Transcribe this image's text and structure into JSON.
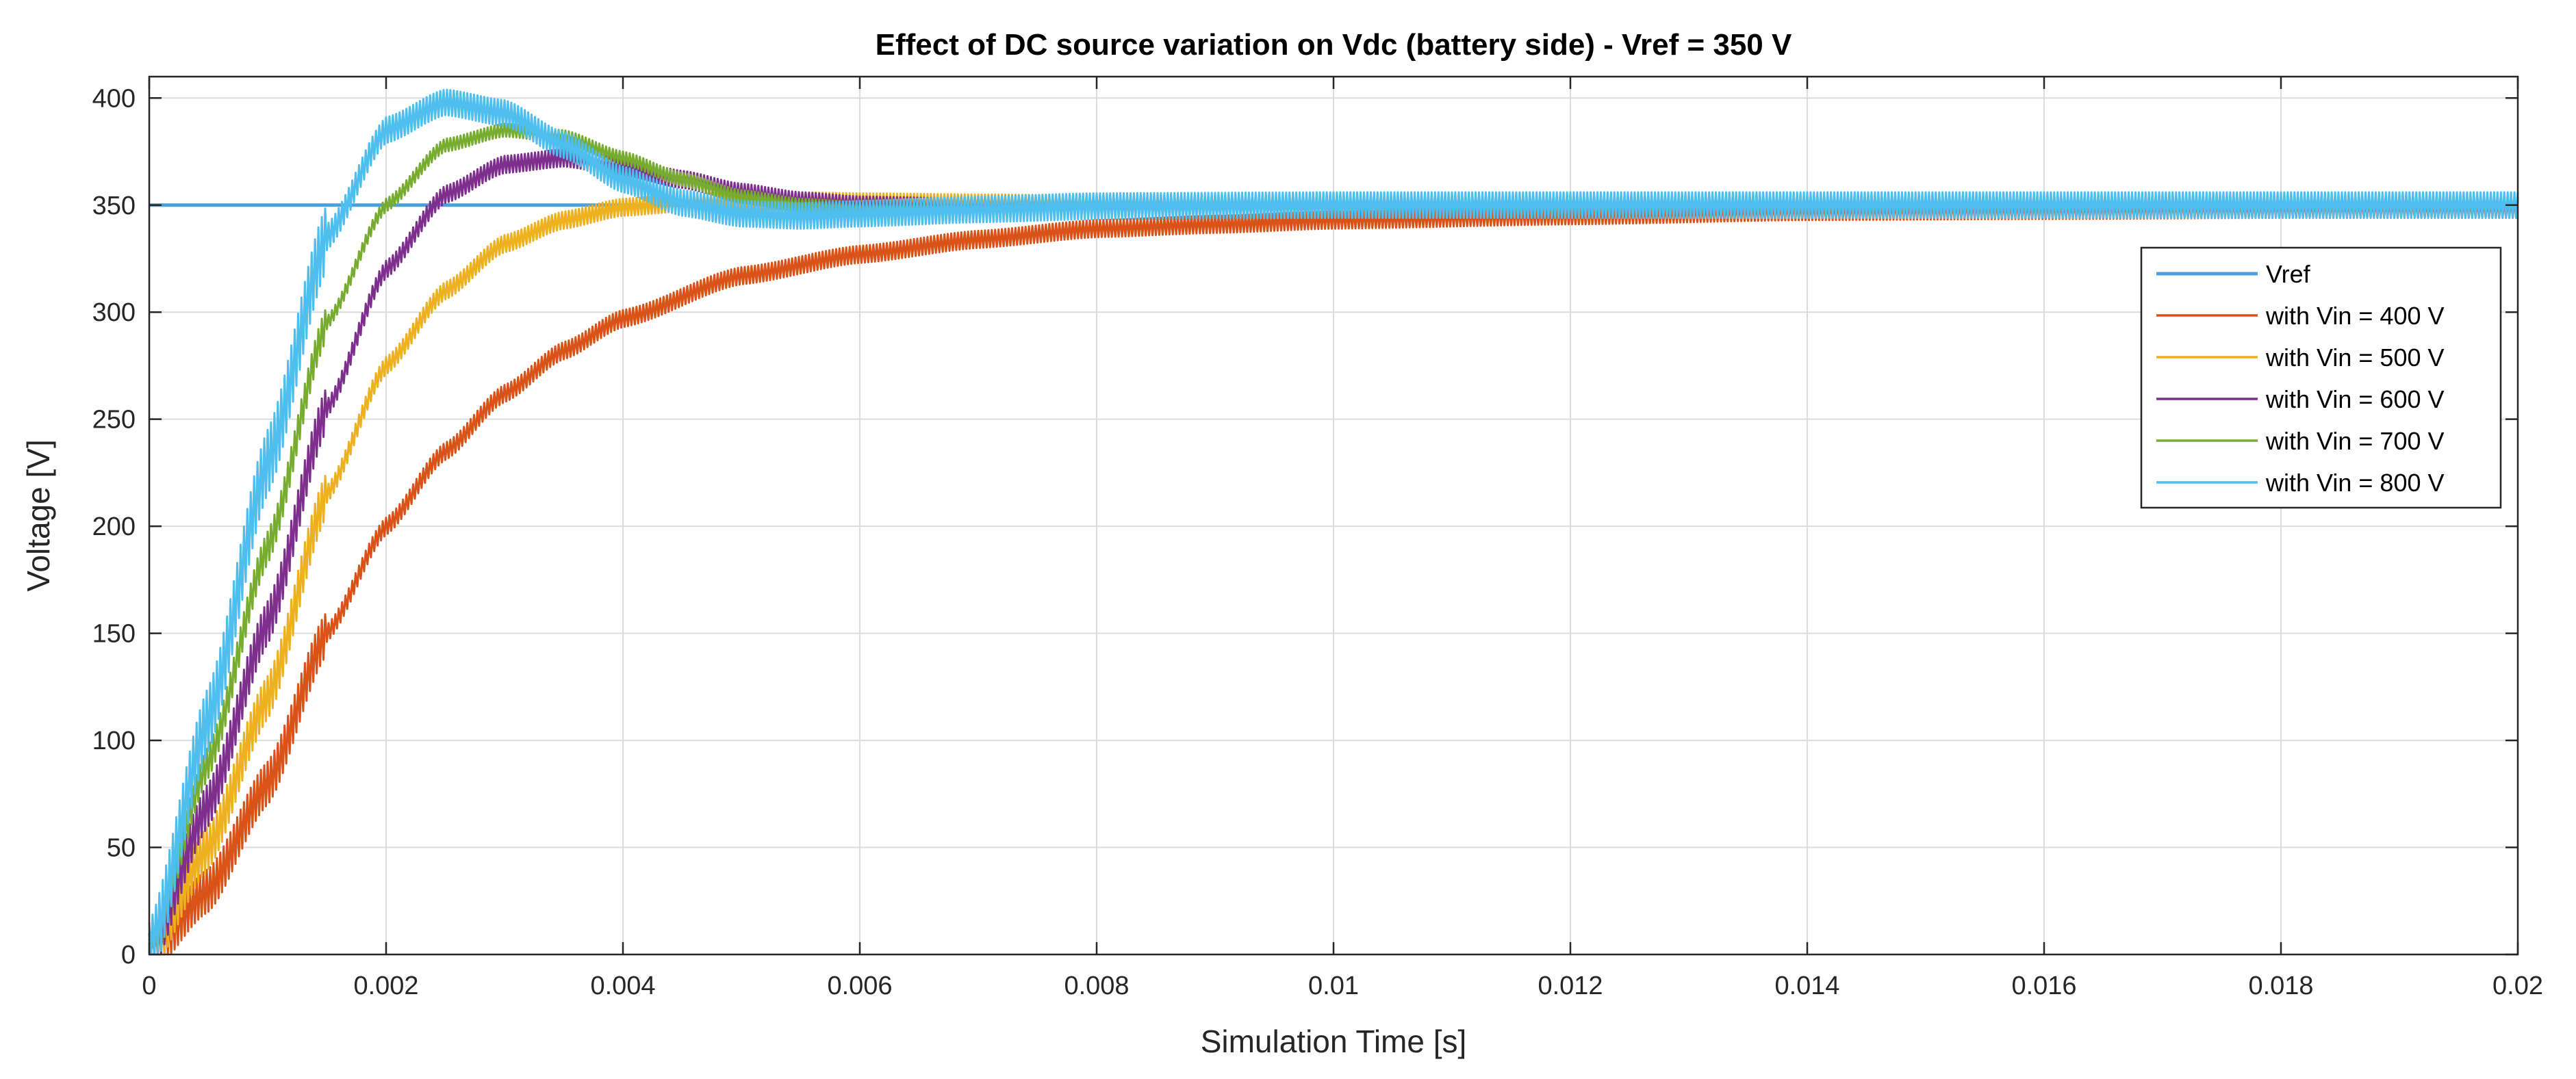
{
  "chart_data": {
    "type": "line",
    "title": "Effect of DC source variation on Vdc (battery side) - Vref = 350 V",
    "xlabel": "Simulation Time [s]",
    "ylabel": "Voltage [V]",
    "xlim": [
      0,
      0.02
    ],
    "ylim": [
      0,
      410
    ],
    "grid": true,
    "legend_position": "right, upper-middle",
    "x_ticks": [
      0,
      0.002,
      0.004,
      0.006,
      0.008,
      0.01,
      0.012,
      0.014,
      0.016,
      0.018,
      0.02
    ],
    "x_tick_labels": [
      "0",
      "0.002",
      "0.004",
      "0.006",
      "0.008",
      "0.01",
      "0.012",
      "0.014",
      "0.016",
      "0.018",
      "0.02"
    ],
    "y_ticks": [
      0,
      50,
      100,
      150,
      200,
      250,
      300,
      350,
      400
    ],
    "y_tick_labels": [
      "0",
      "50",
      "100",
      "150",
      "200",
      "250",
      "300",
      "350",
      "400"
    ],
    "series": [
      {
        "name": "Vref",
        "color": "#4a9fdc",
        "ripple": 0,
        "x": [
          0,
          0.02
        ],
        "y": [
          350,
          350
        ]
      },
      {
        "name": "with Vin = 400 V",
        "color": "#d95319",
        "ripple": 4,
        "x": [
          0,
          0.0005,
          0.001,
          0.0015,
          0.002,
          0.0025,
          0.003,
          0.0035,
          0.004,
          0.005,
          0.006,
          0.007,
          0.008,
          0.009,
          0.01,
          0.012,
          0.014,
          0.016,
          0.018,
          0.02
        ],
        "y": [
          0,
          30,
          80,
          150,
          200,
          235,
          262,
          282,
          297,
          317,
          327,
          334,
          339,
          341,
          343,
          345,
          347,
          347.5,
          348,
          348
        ]
      },
      {
        "name": "with Vin = 500 V",
        "color": "#edb120",
        "ripple": 4,
        "x": [
          0,
          0.0005,
          0.001,
          0.0015,
          0.002,
          0.0025,
          0.003,
          0.0035,
          0.004,
          0.0045,
          0.005,
          0.0055,
          0.006,
          0.007,
          0.008,
          0.01,
          0.014,
          0.02
        ],
        "y": [
          0,
          50,
          120,
          215,
          275,
          310,
          332,
          343,
          349,
          351,
          352,
          352,
          351.5,
          351,
          350.5,
          350,
          350,
          350
        ]
      },
      {
        "name": "with Vin = 600 V",
        "color": "#7e2f8e",
        "ripple": 4,
        "x": [
          0,
          0.0005,
          0.001,
          0.0015,
          0.002,
          0.0025,
          0.003,
          0.0035,
          0.004,
          0.0045,
          0.005,
          0.0055,
          0.006,
          0.007,
          0.008,
          0.01,
          0.014,
          0.02
        ],
        "y": [
          0,
          70,
          155,
          255,
          320,
          355,
          369,
          372,
          368,
          362,
          356,
          352,
          350,
          349,
          349.5,
          349.5,
          349.5,
          349.5
        ]
      },
      {
        "name": "with Vin = 700 V",
        "color": "#77ac30",
        "ripple": 3,
        "x": [
          0,
          0.0005,
          0.001,
          0.0015,
          0.002,
          0.0025,
          0.003,
          0.0035,
          0.004,
          0.0045,
          0.005,
          0.0055,
          0.006,
          0.007,
          0.008,
          0.01,
          0.014,
          0.02
        ],
        "y": [
          0,
          90,
          190,
          295,
          350,
          378,
          385,
          382,
          372,
          362,
          354,
          350,
          348.5,
          348.5,
          349,
          349.5,
          350,
          350
        ]
      },
      {
        "name": "with Vin = 800 V",
        "color": "#4dbeee",
        "ripple": 6,
        "x": [
          0,
          0.0005,
          0.001,
          0.0015,
          0.002,
          0.0025,
          0.003,
          0.0035,
          0.004,
          0.0045,
          0.005,
          0.0055,
          0.006,
          0.007,
          0.008,
          0.01,
          0.014,
          0.02
        ],
        "y": [
          0,
          110,
          230,
          335,
          385,
          398,
          393,
          378,
          362,
          351,
          346,
          345,
          346,
          348,
          349.5,
          350,
          350,
          350
        ]
      }
    ]
  }
}
